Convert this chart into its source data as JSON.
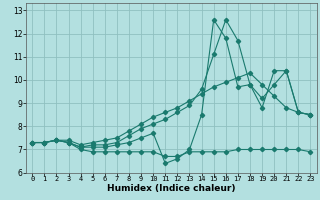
{
  "title": "",
  "xlabel": "Humidex (Indice chaleur)",
  "bg_color": "#b3e0e0",
  "grid_color": "#90c0c0",
  "line_color": "#1a7a6e",
  "xlim": [
    -0.5,
    23.5
  ],
  "ylim": [
    6.0,
    13.3
  ],
  "xticks": [
    0,
    1,
    2,
    3,
    4,
    5,
    6,
    7,
    8,
    9,
    10,
    11,
    12,
    13,
    14,
    15,
    16,
    17,
    18,
    19,
    20,
    21,
    22,
    23
  ],
  "yticks": [
    6,
    7,
    8,
    9,
    10,
    11,
    12,
    13
  ],
  "line1_x": [
    0,
    1,
    2,
    3,
    4,
    5,
    6,
    7,
    8,
    9,
    10,
    11,
    12,
    13,
    14,
    15,
    16,
    17,
    18,
    19,
    20,
    21,
    22,
    23
  ],
  "line1_y": [
    7.3,
    7.3,
    7.4,
    7.3,
    7.0,
    6.9,
    6.9,
    6.9,
    6.9,
    6.9,
    6.9,
    6.7,
    6.7,
    6.9,
    6.9,
    6.9,
    6.9,
    7.0,
    7.0,
    7.0,
    7.0,
    7.0,
    7.0,
    6.9
  ],
  "line2_x": [
    0,
    1,
    2,
    3,
    4,
    5,
    6,
    7,
    8,
    9,
    10,
    11,
    12,
    13,
    14,
    15,
    16,
    17,
    18,
    19,
    20,
    21,
    22,
    23
  ],
  "line2_y": [
    7.3,
    7.3,
    7.4,
    7.3,
    7.1,
    7.1,
    7.1,
    7.2,
    7.3,
    7.5,
    7.7,
    6.4,
    6.6,
    7.0,
    8.5,
    12.6,
    11.8,
    9.7,
    9.8,
    8.8,
    10.4,
    10.4,
    8.6,
    8.5
  ],
  "line3_x": [
    0,
    1,
    2,
    3,
    4,
    5,
    6,
    7,
    8,
    9,
    10,
    11,
    12,
    13,
    14,
    15,
    16,
    17,
    18,
    19,
    20,
    21,
    22,
    23
  ],
  "line3_y": [
    7.3,
    7.3,
    7.4,
    7.4,
    7.2,
    7.3,
    7.4,
    7.5,
    7.8,
    8.1,
    8.4,
    8.6,
    8.8,
    9.1,
    9.4,
    9.7,
    9.9,
    10.1,
    10.3,
    9.8,
    9.3,
    8.8,
    8.6,
    8.5
  ],
  "line4_x": [
    0,
    1,
    2,
    3,
    4,
    5,
    6,
    7,
    8,
    9,
    10,
    11,
    12,
    13,
    14,
    15,
    16,
    17,
    18,
    19,
    20,
    21,
    22,
    23
  ],
  "line4_y": [
    7.3,
    7.3,
    7.4,
    7.3,
    7.1,
    7.2,
    7.2,
    7.3,
    7.6,
    7.9,
    8.1,
    8.3,
    8.6,
    8.9,
    9.6,
    11.1,
    12.6,
    11.7,
    9.8,
    9.2,
    9.8,
    10.4,
    8.6,
    8.5
  ]
}
